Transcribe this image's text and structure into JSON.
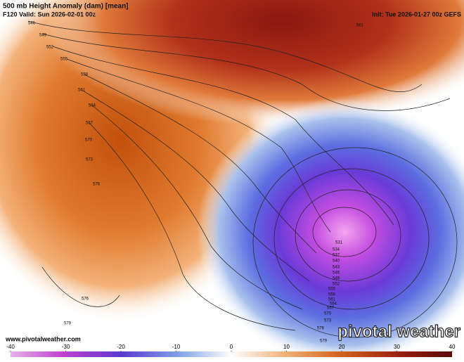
{
  "header": {
    "title": "500 mb Height Anomaly (dam) [mean]",
    "valid": "F120 Valid: Sun 2026-02-01 00z",
    "init": "Init: Tue 2026-01-27 00z GEFS"
  },
  "footer": {
    "website": "www.pivotalweather.com",
    "brand": "pivotal weather"
  },
  "colorbar": {
    "range": [
      -40,
      40
    ],
    "ticks": [
      -40,
      -30,
      -20,
      -10,
      0,
      10,
      20,
      30,
      40
    ]
  },
  "contour_labels": [
    546,
    549,
    552,
    555,
    558,
    561,
    564,
    567,
    570,
    573,
    576,
    576,
    579,
    531,
    534,
    537,
    540,
    543,
    546,
    549,
    552,
    555,
    558,
    561,
    564,
    567,
    570,
    573,
    576,
    579,
    561
  ]
}
